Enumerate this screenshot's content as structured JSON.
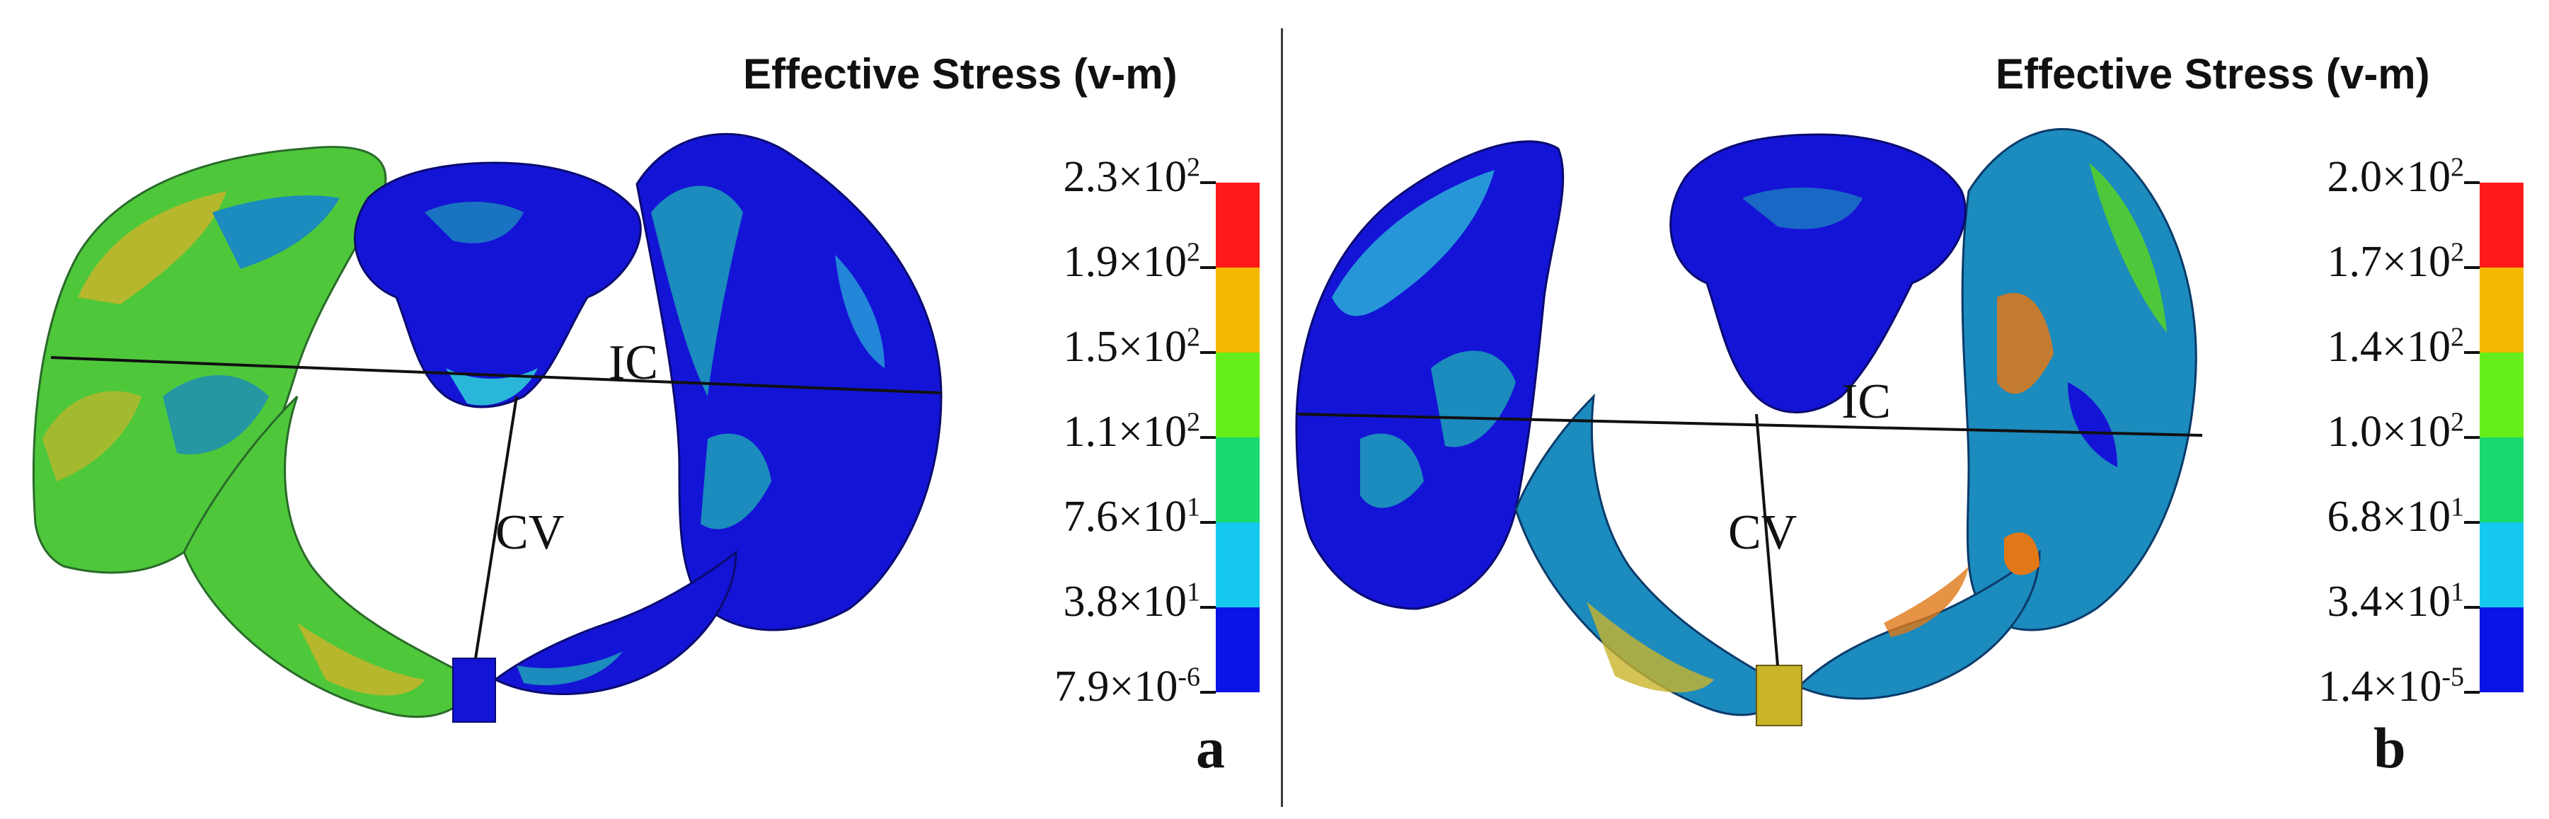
{
  "panels": [
    {
      "label": "a",
      "title": "Effective Stress (v-m)",
      "legend": [
        {
          "mantissa": "2.3×10",
          "exp": "2"
        },
        {
          "mantissa": "1.9×10",
          "exp": "2"
        },
        {
          "mantissa": "1.5×10",
          "exp": "2"
        },
        {
          "mantissa": "1.1×10",
          "exp": "2"
        },
        {
          "mantissa": "7.6×10",
          "exp": "1"
        },
        {
          "mantissa": "3.8×10",
          "exp": "1"
        },
        {
          "mantissa": "7.9×10",
          "exp": "-6"
        }
      ],
      "measurements": {
        "transverse": "IC",
        "vertical": "CV"
      }
    },
    {
      "label": "b",
      "title": "Effective Stress (v-m)",
      "legend": [
        {
          "mantissa": "2.0×10",
          "exp": "2"
        },
        {
          "mantissa": "1.7×10",
          "exp": "2"
        },
        {
          "mantissa": "1.4×10",
          "exp": "2"
        },
        {
          "mantissa": "1.0×10",
          "exp": "2"
        },
        {
          "mantissa": "6.8×10",
          "exp": "1"
        },
        {
          "mantissa": "3.4×10",
          "exp": "1"
        },
        {
          "mantissa": "1.4×10",
          "exp": "-5"
        }
      ],
      "measurements": {
        "transverse": "IC",
        "vertical": "CV"
      }
    }
  ],
  "colormap": [
    "#ff1a1a",
    "#f5b800",
    "#66ee1a",
    "#1ad96e",
    "#14c8f0",
    "#0a14e6"
  ],
  "mesh_colors": {
    "blue": "#1414d6",
    "teal": "#1c8bbd",
    "cyan": "#2ab6d8",
    "green": "#4ec83a",
    "yellow": "#c9b42a",
    "orange": "#e07818"
  }
}
